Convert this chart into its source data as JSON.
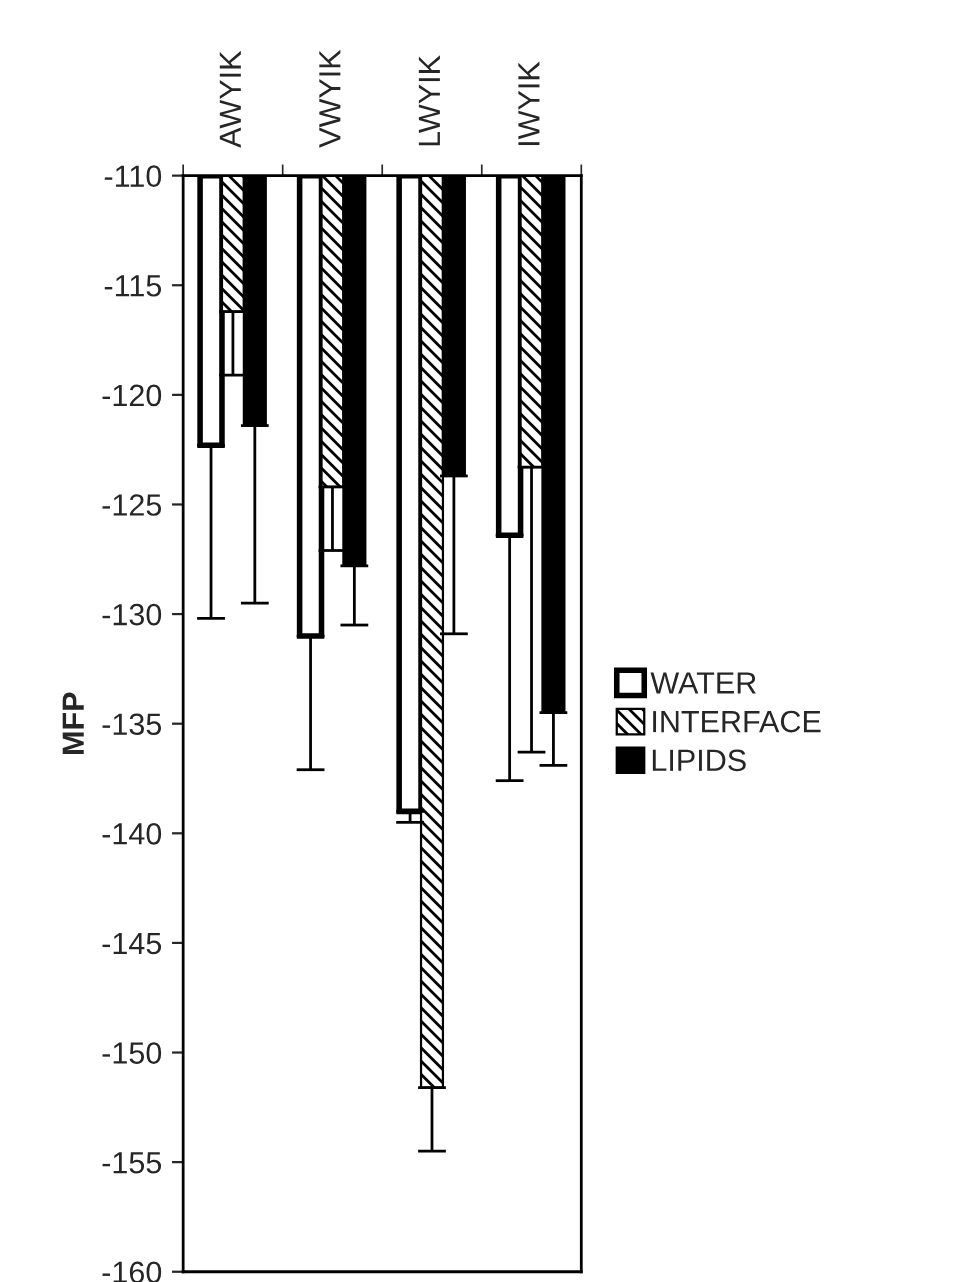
{
  "chart_data": {
    "type": "bar",
    "ylabel": "MFP",
    "categories": [
      "AWYIK",
      "VWYIK",
      "LWYIK",
      "IWYIK"
    ],
    "series": [
      {
        "name": "WATER",
        "color": "#ffffff",
        "values": [
          -122.3,
          -131.0,
          -139.0,
          -126.4
        ],
        "errors": [
          [
            -130.2,
            -122.3
          ],
          [
            -137.1,
            -131.0
          ],
          [
            -139.5,
            -139.0
          ],
          [
            -137.6,
            -126.4
          ]
        ]
      },
      {
        "name": "INTERFACE",
        "color": "#000000",
        "values": [
          -116.2,
          -124.2,
          -151.6,
          -123.3
        ],
        "errors": [
          [
            -119.1,
            -116.2
          ],
          [
            -127.1,
            -124.2
          ],
          [
            -154.5,
            -151.6
          ],
          [
            -136.3,
            -123.3
          ]
        ]
      },
      {
        "name": "LIPIDS",
        "color": "#000000",
        "values": [
          -121.4,
          -127.8,
          -123.7,
          -134.5
        ],
        "errors": [
          [
            -129.5,
            -121.4
          ],
          [
            -130.5,
            -127.8
          ],
          [
            -130.9,
            -123.7
          ],
          [
            -136.9,
            -134.5
          ]
        ]
      }
    ],
    "ylim": [
      -160,
      -110
    ],
    "yticks": [
      -160,
      -155,
      -150,
      -145,
      -140,
      -135,
      -130,
      -125,
      -120,
      -115,
      -110
    ],
    "grid": false,
    "legend": "right"
  }
}
